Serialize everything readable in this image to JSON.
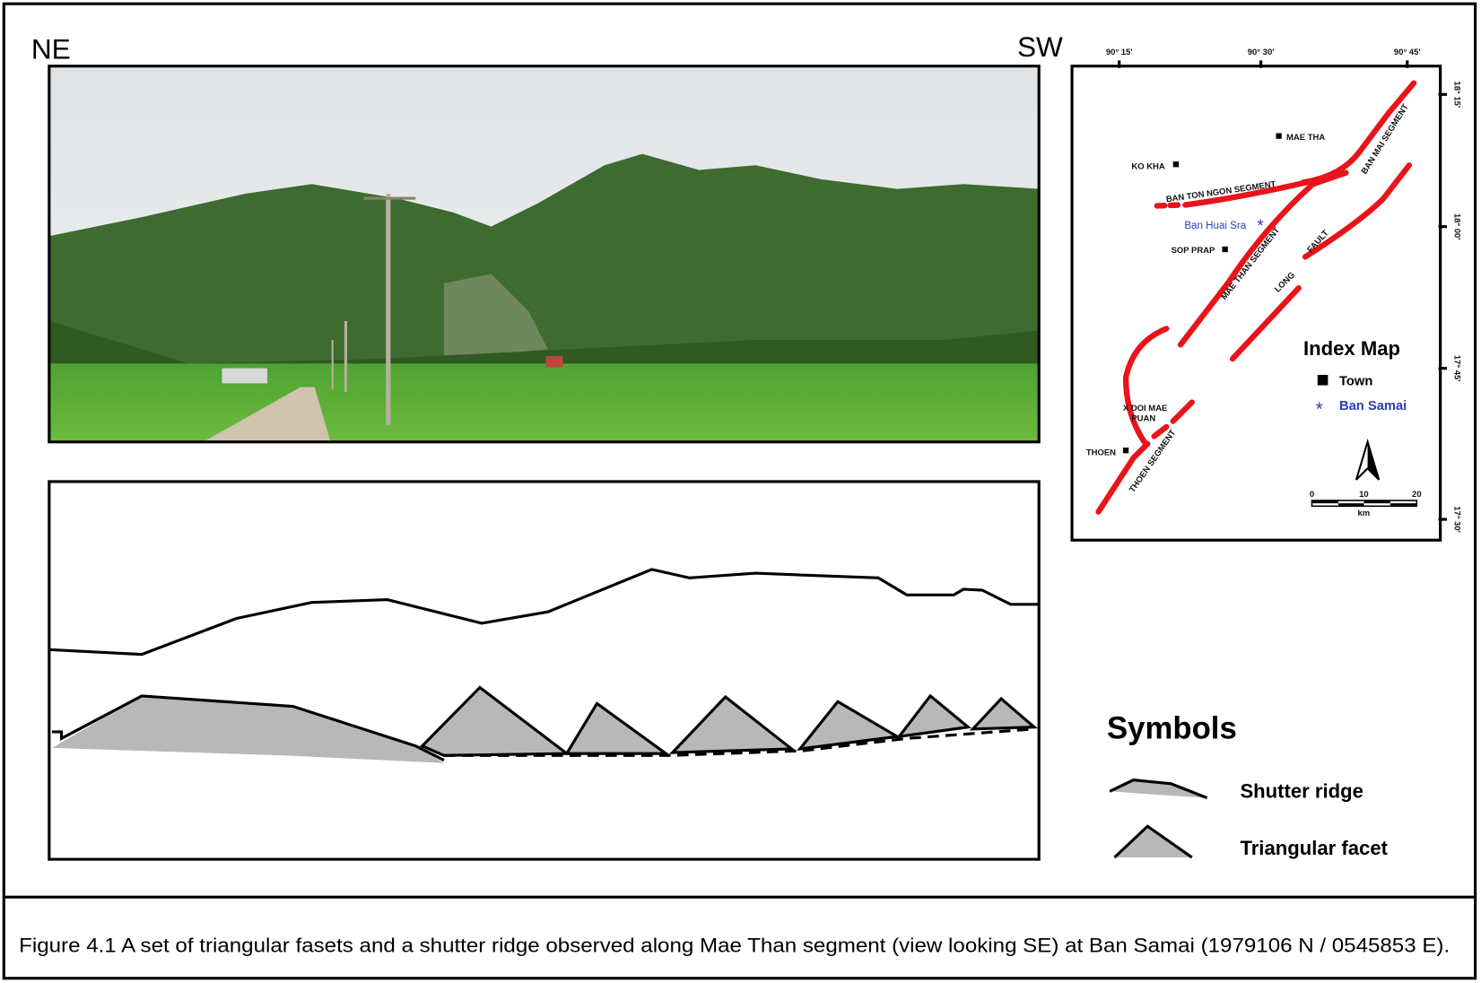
{
  "header": {
    "left": "NE",
    "right": "SW"
  },
  "index_map": {
    "title": "Index Map",
    "lon_labels": [
      "90° 15'",
      "90° 30'",
      "90° 45'"
    ],
    "lat_labels": [
      "18° 15'",
      "18° 00'",
      "17° 45'",
      "17° 30'"
    ],
    "places": [
      "MAE THA",
      "KO KHA",
      "SOP PRAP",
      "Ban Huai Sra",
      "X DOI MAE",
      "PUAN",
      "THOEN"
    ],
    "faults": [
      "BAN TON NGON SEGMENT",
      "MAE THAN SEGMENT",
      "BAN MAI SEGMENT",
      "FAULT",
      "LONG",
      "THOEN SEGMENT"
    ],
    "legend": {
      "town": "Town",
      "ban_samai": "Ban Samai"
    },
    "scale": {
      "ticks": [
        "0",
        "10",
        "20"
      ],
      "unit": "km"
    }
  },
  "symbols": {
    "title": "Symbols",
    "shutter_ridge": "Shutter ridge",
    "triangular_facet": "Triangular facet"
  },
  "caption": "Figure 4.1 A set of triangular fasets and a shutter ridge observed along Mae Than segment (view looking SE) at Ban Samai (1979106 N / 0545853 E)."
}
